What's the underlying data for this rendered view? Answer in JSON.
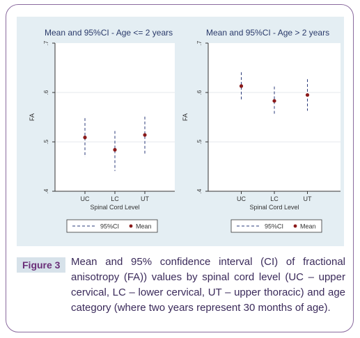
{
  "figure": {
    "label": "Figure 3",
    "caption": "Mean and 95% confidence interval (CI) of fractional anisotropy (FA)) values by spinal cord level (UC – upper cervical, LC – lower cervical, UT – upper thoracic) and age category (where two years represent 30 months of age)."
  },
  "colors": {
    "mean": "#8b1a1a",
    "ci": "#2a3a7a",
    "panel_bg": "#ffffff",
    "figure_bg": "#e4eef3",
    "frame": "#8a6a9e"
  },
  "chart_data": [
    {
      "type": "scatter",
      "title": "Mean and 95%CI - Age <= 2 years",
      "xlabel": "Spinal Cord Level",
      "ylabel": "FA",
      "categories": [
        "UC",
        "LC",
        "UT"
      ],
      "yticks": [
        ".4",
        ".5",
        ".6",
        ".7"
      ],
      "ylim": [
        0.4,
        0.7
      ],
      "legend": [
        "95%CI",
        "Mean"
      ],
      "legend_position": "bottom",
      "series": [
        {
          "name": "Mean",
          "values": [
            0.509,
            0.484,
            0.514
          ]
        },
        {
          "name": "95%CI",
          "lower": [
            0.469,
            0.441,
            0.474
          ],
          "upper": [
            0.548,
            0.522,
            0.551
          ]
        }
      ]
    },
    {
      "type": "scatter",
      "title": "Mean and 95%CI - Age > 2 years",
      "xlabel": "Spinal Cord Level",
      "ylabel": "FA",
      "categories": [
        "UC",
        "LC",
        "UT"
      ],
      "yticks": [
        ".4",
        ".5",
        ".6",
        ".7"
      ],
      "ylim": [
        0.4,
        0.7
      ],
      "legend": [
        "95%CI",
        "Mean"
      ],
      "legend_position": "bottom",
      "series": [
        {
          "name": "Mean",
          "values": [
            0.613,
            0.583,
            0.595
          ]
        },
        {
          "name": "95%CI",
          "lower": [
            0.585,
            0.553,
            0.563
          ],
          "upper": [
            0.641,
            0.612,
            0.627
          ]
        }
      ]
    }
  ]
}
